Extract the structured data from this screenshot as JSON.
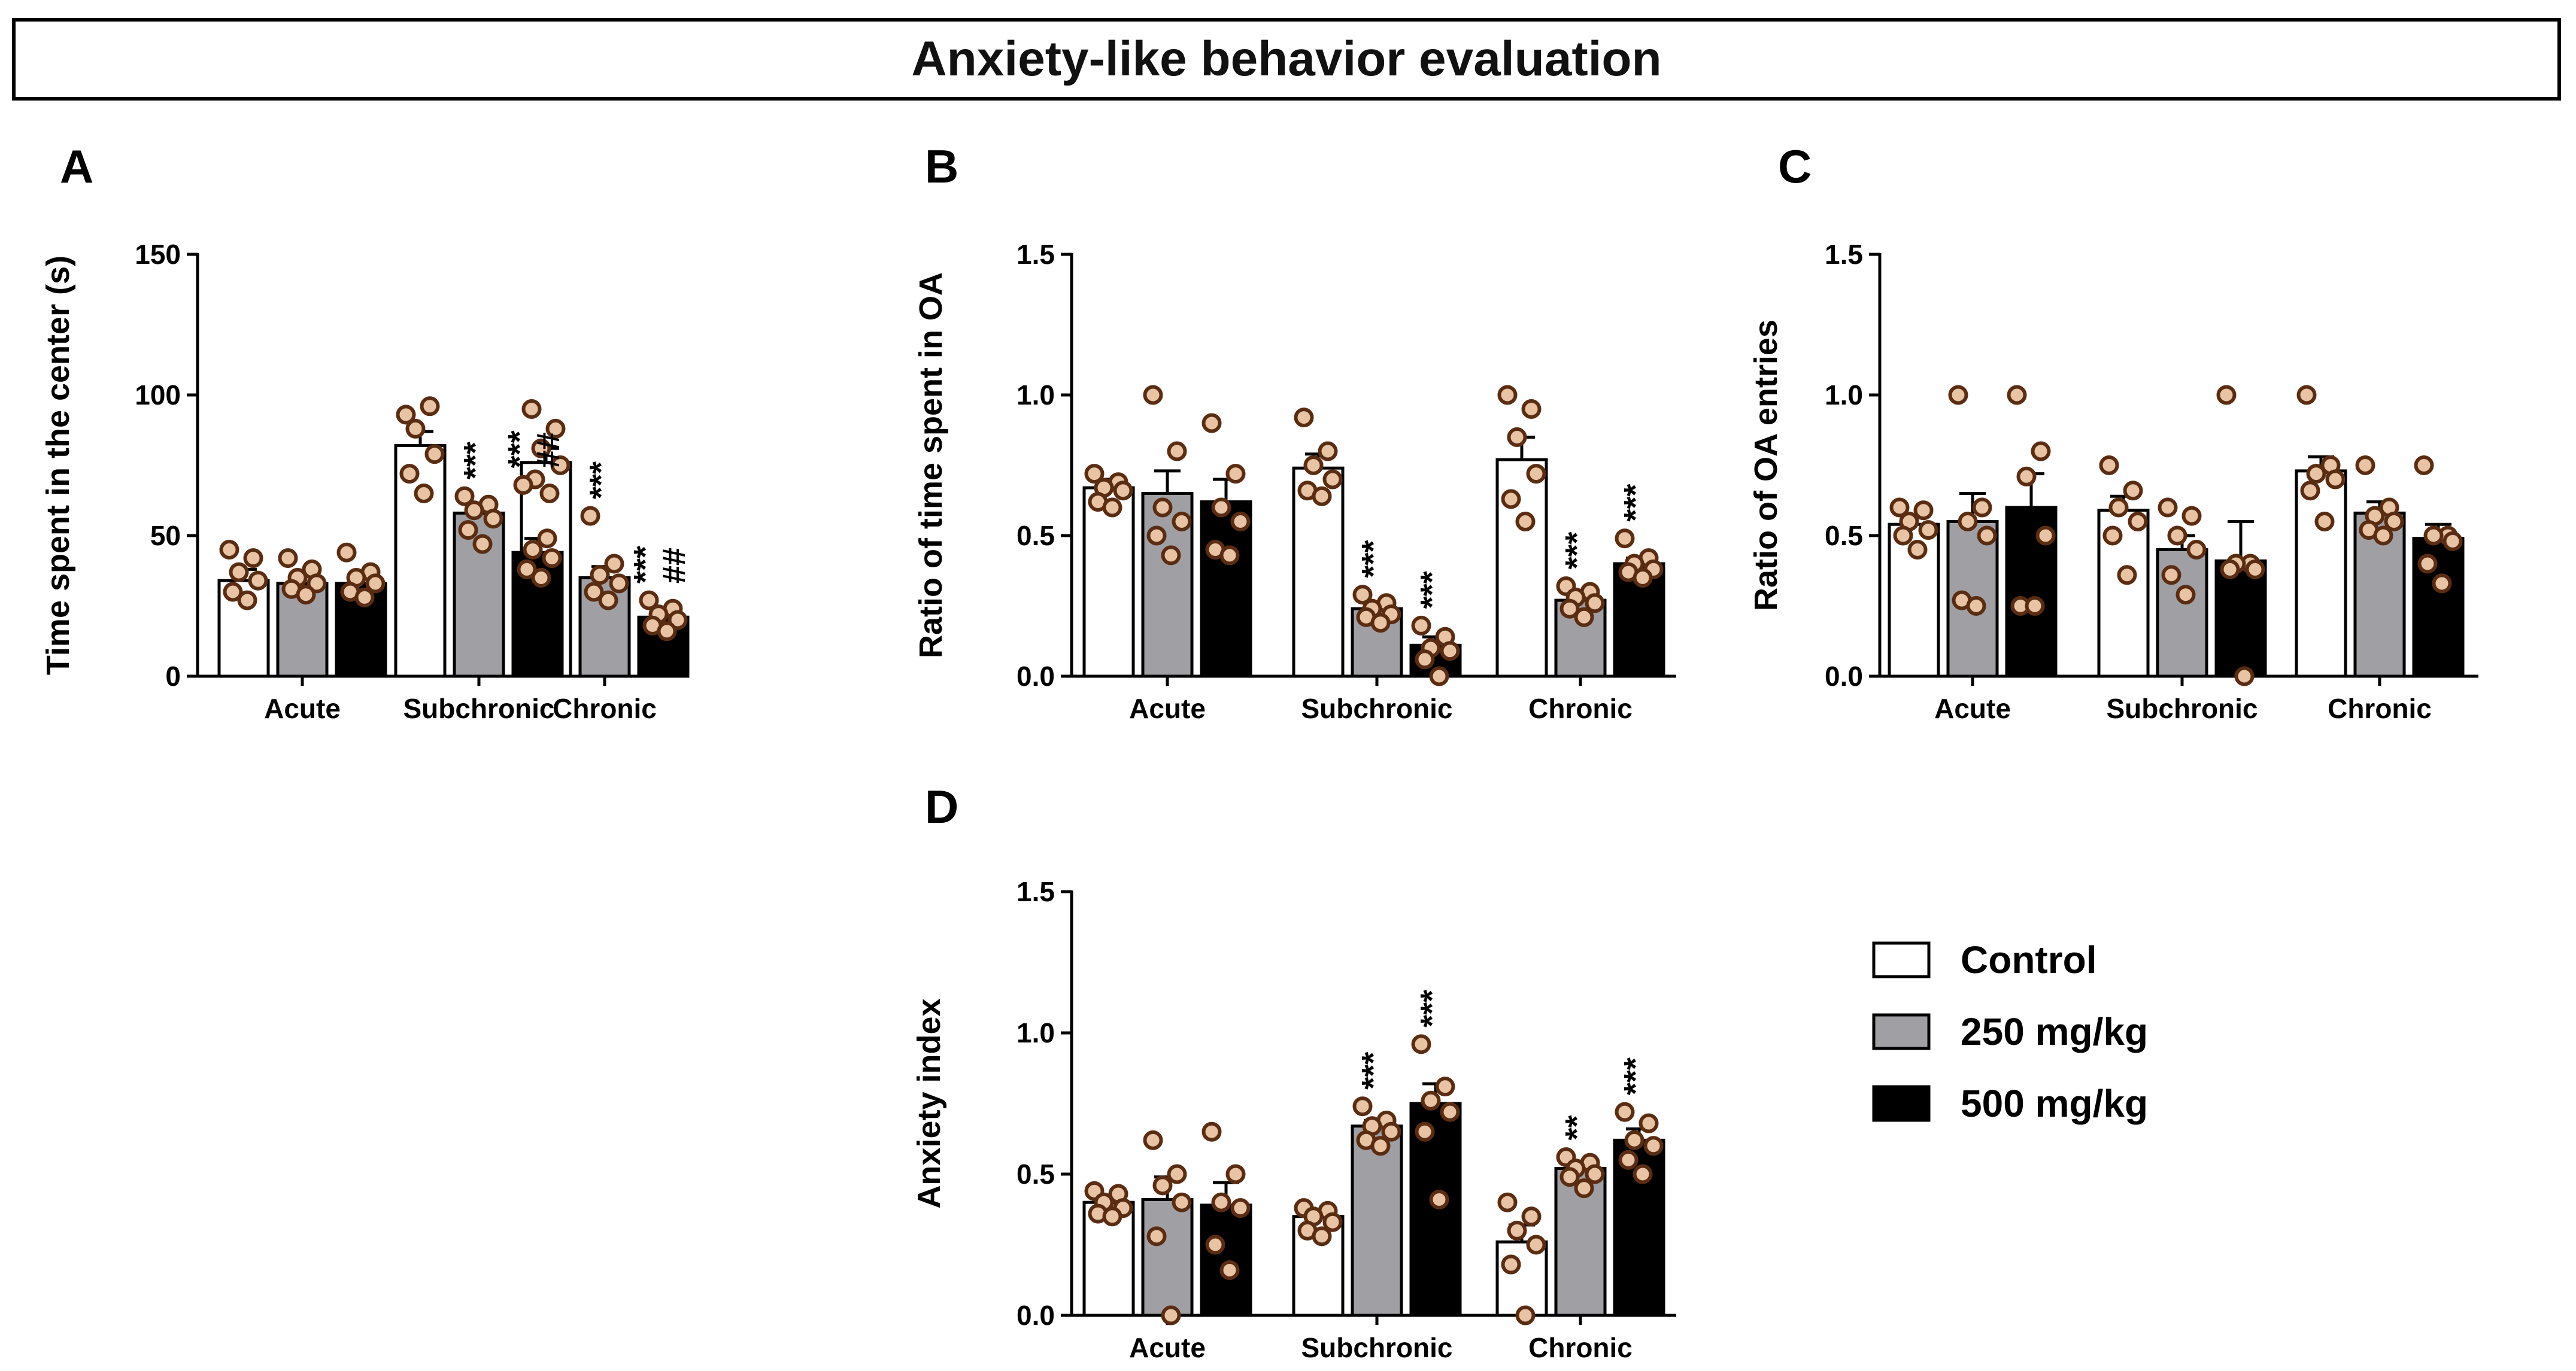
{
  "figure_title": "Anxiety-like behavior evaluation",
  "legend": {
    "items": [
      {
        "label": "Control",
        "color": "#ffffff"
      },
      {
        "label": "250 mg/kg",
        "color": "#a0a0a4"
      },
      {
        "label": "500 mg/kg",
        "color": "#000000"
      }
    ]
  },
  "colors": {
    "dot_fill": "#e8c3a4",
    "dot_stroke": "#5a2d12",
    "axis": "#000000"
  },
  "chart_data": [
    {
      "panel": "A",
      "type": "bar",
      "ylabel": "Time spent in the center (s)",
      "ylim": [
        0,
        150
      ],
      "yticks": [
        0,
        50,
        100,
        150
      ],
      "tick_labels": [
        "0",
        "50",
        "100",
        "150"
      ],
      "categories": [
        "Acute",
        "Subchronic",
        "Chronic"
      ],
      "series": [
        {
          "name": "Control",
          "values": [
            34,
            82,
            76
          ],
          "sem": [
            4,
            5,
            5
          ],
          "points": [
            [
              45,
              42,
              37,
              34,
              30,
              27
            ],
            [
              93,
              96,
              88,
              79,
              72,
              65
            ],
            [
              95,
              88,
              81,
              75,
              70,
              65
            ]
          ],
          "sig": [
            "",
            "",
            ""
          ]
        },
        {
          "name": "250 mg/kg",
          "values": [
            33,
            58,
            35
          ],
          "sem": [
            3,
            3,
            4
          ],
          "points": [
            [
              42,
              38,
              35,
              33,
              31,
              29
            ],
            [
              64,
              61,
              59,
              56,
              52,
              47
            ],
            [
              57,
              40,
              36,
              33,
              30,
              27
            ]
          ],
          "sig": [
            "",
            "***",
            "***"
          ]
        },
        {
          "name": "500 mg/kg",
          "values": [
            33,
            44,
            21
          ],
          "sem": [
            3,
            5,
            2
          ],
          "points": [
            [
              44,
              37,
              35,
              33,
              30,
              28
            ],
            [
              68,
              49,
              45,
              42,
              38,
              35
            ],
            [
              27,
              24,
              22,
              20,
              18,
              16
            ]
          ],
          "sig": [
            "",
            "***\n##",
            "***\n##"
          ]
        }
      ]
    },
    {
      "panel": "B",
      "type": "bar",
      "ylabel": "Ratio of time spent in OA",
      "ylim": [
        0,
        1.5
      ],
      "yticks": [
        0,
        0.5,
        1.0,
        1.5
      ],
      "tick_labels": [
        "0.0",
        "0.5",
        "1.0",
        "1.5"
      ],
      "categories": [
        "Acute",
        "Subchronic",
        "Chronic"
      ],
      "series": [
        {
          "name": "Control",
          "values": [
            0.67,
            0.74,
            0.77
          ],
          "sem": [
            0.03,
            0.05,
            0.08
          ],
          "points": [
            [
              0.72,
              0.69,
              0.67,
              0.66,
              0.62,
              0.6
            ],
            [
              0.92,
              0.8,
              0.75,
              0.7,
              0.66,
              0.64
            ],
            [
              1.0,
              0.95,
              0.85,
              0.72,
              0.63,
              0.55
            ]
          ],
          "sig": [
            "",
            "",
            ""
          ]
        },
        {
          "name": "250 mg/kg",
          "values": [
            0.65,
            0.24,
            0.27
          ],
          "sem": [
            0.08,
            0.02,
            0.02
          ],
          "points": [
            [
              1.0,
              0.8,
              0.6,
              0.55,
              0.5,
              0.43
            ],
            [
              0.29,
              0.26,
              0.24,
              0.22,
              0.21,
              0.19
            ],
            [
              0.32,
              0.3,
              0.28,
              0.26,
              0.24,
              0.21
            ]
          ],
          "sig": [
            "",
            "***",
            "***"
          ]
        },
        {
          "name": "500 mg/kg",
          "values": [
            0.62,
            0.11,
            0.4
          ],
          "sem": [
            0.08,
            0.03,
            0.02
          ],
          "points": [
            [
              0.9,
              0.72,
              0.6,
              0.55,
              0.45,
              0.43
            ],
            [
              0.18,
              0.14,
              0.1,
              0.09,
              0.06,
              0.0
            ],
            [
              0.49,
              0.42,
              0.4,
              0.38,
              0.37,
              0.35
            ]
          ],
          "sig": [
            "",
            "***",
            "***"
          ]
        }
      ]
    },
    {
      "panel": "C",
      "type": "bar",
      "ylabel": "Ratio of OA entries",
      "ylim": [
        0,
        1.5
      ],
      "yticks": [
        0,
        0.5,
        1.0,
        1.5
      ],
      "tick_labels": [
        "0.0",
        "0.5",
        "1.0",
        "1.5"
      ],
      "categories": [
        "Acute",
        "Subchronic",
        "Chronic"
      ],
      "series": [
        {
          "name": "Control",
          "values": [
            0.54,
            0.59,
            0.73
          ],
          "sem": [
            0.03,
            0.05,
            0.05
          ],
          "points": [
            [
              0.6,
              0.59,
              0.55,
              0.52,
              0.5,
              0.45
            ],
            [
              0.75,
              0.66,
              0.6,
              0.55,
              0.5,
              0.36
            ],
            [
              1.0,
              0.75,
              0.72,
              0.7,
              0.66,
              0.55
            ]
          ],
          "sig": [
            "",
            "",
            ""
          ]
        },
        {
          "name": "250 mg/kg",
          "values": [
            0.55,
            0.45,
            0.58
          ],
          "sem": [
            0.1,
            0.05,
            0.04
          ],
          "points": [
            [
              1.0,
              0.6,
              0.55,
              0.5,
              0.27,
              0.25
            ],
            [
              0.6,
              0.57,
              0.5,
              0.45,
              0.36,
              0.29
            ],
            [
              0.75,
              0.6,
              0.57,
              0.55,
              0.52,
              0.5
            ]
          ],
          "sig": [
            "",
            "",
            ""
          ]
        },
        {
          "name": "500 mg/kg",
          "values": [
            0.6,
            0.41,
            0.49
          ],
          "sem": [
            0.12,
            0.14,
            0.05
          ],
          "points": [
            [
              1.0,
              0.8,
              0.71,
              0.5,
              0.25,
              0.25
            ],
            [
              1.0,
              0.4,
              0.4,
              0.38,
              0.38,
              0.0
            ],
            [
              0.75,
              0.5,
              0.5,
              0.48,
              0.4,
              0.33
            ]
          ],
          "sig": [
            "",
            "",
            ""
          ]
        }
      ]
    },
    {
      "panel": "D",
      "type": "bar",
      "ylabel": "Anxiety index",
      "ylim": [
        0,
        1.5
      ],
      "yticks": [
        0,
        0.5,
        1.0,
        1.5
      ],
      "tick_labels": [
        "0.0",
        "0.5",
        "1.0",
        "1.5"
      ],
      "categories": [
        "Acute",
        "Subchronic",
        "Chronic"
      ],
      "series": [
        {
          "name": "Control",
          "values": [
            0.4,
            0.35,
            0.26
          ],
          "sem": [
            0.02,
            0.02,
            0.06
          ],
          "points": [
            [
              0.44,
              0.43,
              0.4,
              0.38,
              0.36,
              0.35
            ],
            [
              0.38,
              0.37,
              0.35,
              0.33,
              0.3,
              0.28
            ],
            [
              0.4,
              0.35,
              0.3,
              0.25,
              0.18,
              0.0
            ]
          ],
          "sig": [
            "",
            "",
            ""
          ]
        },
        {
          "name": "250 mg/kg",
          "values": [
            0.41,
            0.67,
            0.52
          ],
          "sem": [
            0.08,
            0.02,
            0.02
          ],
          "points": [
            [
              0.62,
              0.5,
              0.46,
              0.4,
              0.28,
              0.0
            ],
            [
              0.74,
              0.69,
              0.67,
              0.65,
              0.62,
              0.6
            ],
            [
              0.56,
              0.54,
              0.52,
              0.5,
              0.49,
              0.45
            ]
          ],
          "sig": [
            "",
            "***",
            "**"
          ]
        },
        {
          "name": "500 mg/kg",
          "values": [
            0.39,
            0.75,
            0.62
          ],
          "sem": [
            0.08,
            0.07,
            0.04
          ],
          "points": [
            [
              0.65,
              0.5,
              0.4,
              0.38,
              0.25,
              0.16
            ],
            [
              0.96,
              0.81,
              0.76,
              0.72,
              0.65,
              0.41
            ],
            [
              0.72,
              0.68,
              0.62,
              0.6,
              0.55,
              0.5
            ]
          ],
          "sig": [
            "",
            "***",
            "***"
          ]
        }
      ]
    }
  ]
}
